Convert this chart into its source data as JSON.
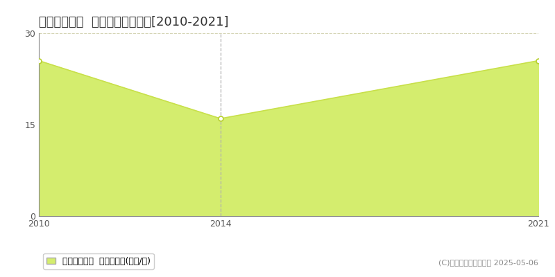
{
  "title": "徳島市東沖洲  収益物件価格推移[2010-2021]",
  "years": [
    2010,
    2014,
    2021
  ],
  "values": [
    25.5,
    16.0,
    25.5
  ],
  "fill_color": "#d4ed6e",
  "fill_alpha": 1.0,
  "line_color": "#c8e04a",
  "line_width": 1.2,
  "marker_color": "white",
  "marker_edgecolor": "#b8d030",
  "marker_size": 5,
  "dashed_line_x": 2014,
  "dashed_line_color": "#b0b0b0",
  "yticks": [
    0,
    15,
    30
  ],
  "xticks": [
    2010,
    2014,
    2021
  ],
  "xlim": [
    2010,
    2021
  ],
  "ylim": [
    0,
    30
  ],
  "grid_color": "#c8c8a0",
  "grid_style": "--",
  "grid_alpha": 0.8,
  "legend_label": "収益物件価格  平均坪単価(万円/坪)",
  "copyright_text": "(C)土地価格ドットコム 2025-05-06",
  "background_color": "#ffffff",
  "title_fontsize": 13,
  "axis_fontsize": 9,
  "legend_fontsize": 9,
  "copyright_fontsize": 8
}
